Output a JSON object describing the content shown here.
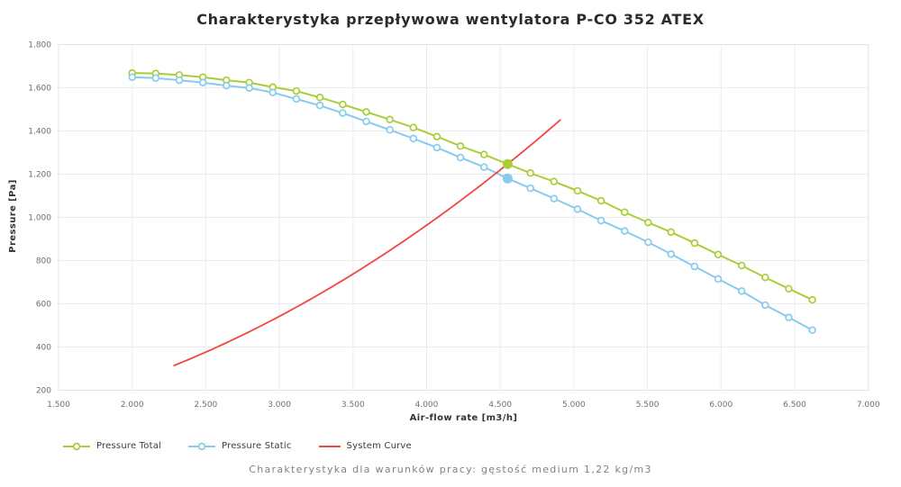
{
  "chart_data": {
    "type": "line",
    "title": "Charakterystyka przepływowa wentylatora P-CO 352 ATEX",
    "caption": "Charakterystyka dla warunków pracy: gęstość medium 1,22 kg/m3",
    "xlabel": "Air-flow rate [m3/h]",
    "ylabel": "Pressure [Pa]",
    "xlim": [
      1500,
      7000
    ],
    "ylim": [
      200,
      1800
    ],
    "x_ticks": [
      1500,
      2000,
      2500,
      3000,
      3500,
      4000,
      4500,
      5000,
      5500,
      6000,
      6500,
      7000
    ],
    "y_ticks": [
      200,
      400,
      600,
      800,
      1000,
      1200,
      1400,
      1600,
      1800
    ],
    "grid": true,
    "legend_position": "bottom-left",
    "x": [
      2000,
      2160,
      2320,
      2480,
      2640,
      2795,
      2955,
      3115,
      3275,
      3430,
      3590,
      3750,
      3910,
      4070,
      4230,
      4390,
      4550,
      4705,
      4865,
      5025,
      5185,
      5345,
      5505,
      5660,
      5820,
      5980,
      6140,
      6300,
      6460,
      6620
    ],
    "series": [
      {
        "name": "Pressure Total",
        "color": "#a9ce38",
        "marker": "circle-open",
        "values": [
          1668,
          1666,
          1659,
          1649,
          1635,
          1624,
          1603,
          1585,
          1555,
          1523,
          1488,
          1453,
          1416,
          1374,
          1330,
          1291,
          1247,
          1205,
          1166,
          1123,
          1077,
          1024,
          976,
          932,
          881,
          828,
          777,
          722,
          670,
          618
        ]
      },
      {
        "name": "Pressure Static",
        "color": "#87cbee",
        "marker": "circle-open",
        "values": [
          1649,
          1645,
          1635,
          1624,
          1610,
          1599,
          1578,
          1548,
          1518,
          1483,
          1444,
          1405,
          1365,
          1323,
          1277,
          1233,
          1180,
          1135,
          1087,
          1038,
          985,
          937,
          885,
          830,
          773,
          715,
          659,
          594,
          537,
          478
        ]
      }
    ],
    "system_curve": {
      "name": "System Curve",
      "color": "#f3463e",
      "shape": "quadratic",
      "q_range": [
        2280,
        4910
      ],
      "reference_point": {
        "q": 4550,
        "p": 1247
      }
    },
    "operating_point": {
      "index": 16,
      "q": 4550,
      "pressure_total": 1247,
      "pressure_static": 1180
    },
    "colors": {
      "grid": "#ececec",
      "tick_text": "#6f6f6f"
    }
  }
}
